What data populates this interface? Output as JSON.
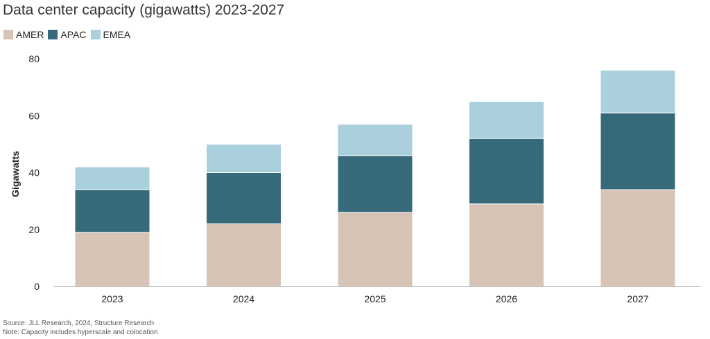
{
  "colors": {
    "AMER": "#d8c4b6",
    "APAC": "#36697a",
    "EMEA": "#a9d0dc",
    "axis": "#222222",
    "baseline": "#aaaaaa"
  },
  "chart_data": {
    "type": "bar",
    "stacked": true,
    "title": "Data center capacity (gigawatts) 2023-2027",
    "xlabel": "",
    "ylabel": "Gigawatts",
    "ylim": [
      0,
      80
    ],
    "yticks": [
      0,
      20,
      40,
      60,
      80
    ],
    "grid": false,
    "legend_position": "top-left",
    "categories": [
      "2023",
      "2024",
      "2025",
      "2026",
      "2027"
    ],
    "series": [
      {
        "name": "AMER",
        "values": [
          19,
          22,
          26,
          29,
          34
        ]
      },
      {
        "name": "APAC",
        "values": [
          15,
          18,
          20,
          23,
          27
        ]
      },
      {
        "name": "EMEA",
        "values": [
          8,
          10,
          11,
          13,
          15
        ]
      }
    ]
  },
  "footer": {
    "source": "Source: JLL Research, 2024, Structure Research",
    "note": "Note: Capacity includes hyperscale and colocation"
  }
}
